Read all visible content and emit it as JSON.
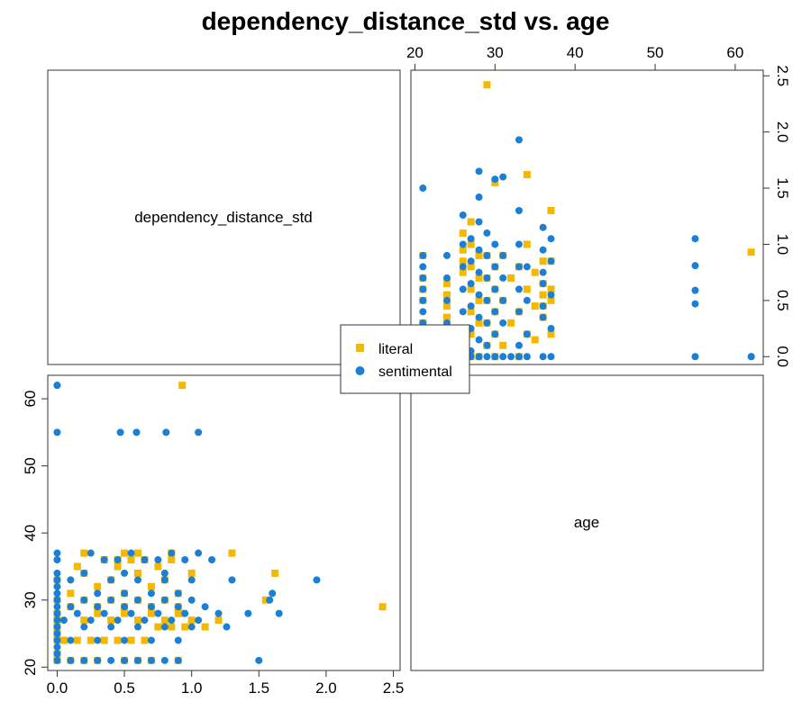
{
  "chart_data": {
    "type": "scatter",
    "title": "dependency_distance_std vs. age",
    "variables": [
      "dependency_distance_std",
      "age"
    ],
    "axes": {
      "dependency_distance_std": {
        "range": [
          -0.07,
          2.55
        ],
        "ticks": [
          "0.0",
          "0.5",
          "1.0",
          "1.5",
          "2.0",
          "2.5"
        ]
      },
      "age": {
        "range": [
          19.5,
          63.5
        ],
        "ticks": [
          "20",
          "30",
          "40",
          "50",
          "60"
        ]
      }
    },
    "colors": {
      "literal": "#F5B800",
      "sentimental": "#1B7FD4"
    },
    "legend": {
      "position": "center",
      "entries": [
        "literal",
        "sentimental"
      ]
    },
    "series": [
      {
        "name": "literal",
        "marker": "square",
        "x": [
          0.0,
          0.0,
          0.0,
          0.0,
          0.0,
          0.0,
          0.0,
          0.0,
          0.1,
          0.2,
          0.3,
          0.5,
          0.6,
          0.7,
          0.9,
          0.05,
          0.15,
          0.25,
          0.35,
          0.45,
          0.55,
          0.65,
          0.75,
          0.85,
          0.95,
          1.1,
          0.2,
          0.4,
          0.6,
          0.8,
          1.0,
          1.2,
          0.3,
          0.5,
          0.7,
          0.9,
          0.1,
          0.3,
          0.5,
          0.7,
          0.9,
          1.3,
          0.2,
          0.4,
          0.6,
          0.8,
          0.1,
          0.5,
          0.9,
          0.3,
          0.7,
          0.0,
          0.4,
          0.8,
          0.2,
          0.6,
          1.0,
          0.15,
          0.45,
          0.75,
          0.35,
          0.55,
          0.85,
          1.62,
          1.55,
          0.93,
          0.92,
          2.42,
          0.6,
          0.85,
          0.5,
          0.2,
          0.45,
          0.65
        ],
        "y": [
          21,
          22,
          24,
          25,
          26,
          27,
          28,
          30,
          21,
          21,
          21,
          21,
          21,
          21,
          21,
          24,
          24,
          24,
          24,
          24,
          24,
          24,
          26,
          26,
          26,
          26,
          27,
          27,
          27,
          27,
          27,
          27,
          28,
          28,
          28,
          28,
          29,
          29,
          29,
          29,
          29,
          37,
          30,
          30,
          30,
          30,
          31,
          31,
          31,
          32,
          32,
          33,
          33,
          33,
          34,
          34,
          34,
          35,
          35,
          35,
          36,
          36,
          36,
          34,
          30,
          62,
          28,
          29,
          37,
          37,
          37,
          37,
          36,
          36
        ]
      },
      {
        "name": "sentimental",
        "marker": "circle",
        "x": [
          0.0,
          0.0,
          0.0,
          0.0,
          0.0,
          0.0,
          0.0,
          0.0,
          0.0,
          0.0,
          0.0,
          0.0,
          0.0,
          0.0,
          0.0,
          0.0,
          0.0,
          0.1,
          0.2,
          0.3,
          0.4,
          0.5,
          0.6,
          0.7,
          0.8,
          0.9,
          0.1,
          0.3,
          0.5,
          0.7,
          0.9,
          0.2,
          0.4,
          0.6,
          0.8,
          1.0,
          0.05,
          0.25,
          0.45,
          0.65,
          0.85,
          1.05,
          0.15,
          0.35,
          0.55,
          0.75,
          0.95,
          1.2,
          0.1,
          0.3,
          0.5,
          0.7,
          0.9,
          1.1,
          0.2,
          0.4,
          0.6,
          0.8,
          1.0,
          0.3,
          0.5,
          0.7,
          0.9,
          0.1,
          0.4,
          0.6,
          0.8,
          1.0,
          0.2,
          0.5,
          0.8,
          1.15,
          0.35,
          0.65,
          0.95,
          0.25,
          0.55,
          0.85,
          0.45,
          0.75,
          1.05,
          1.3,
          1.65,
          1.5,
          1.93,
          1.6,
          1.58,
          1.42,
          1.26,
          0.47,
          0.59,
          0.81,
          1.05,
          0.0,
          0.0
        ],
        "y": [
          21,
          22,
          23,
          24,
          25,
          26,
          27,
          28,
          29,
          30,
          31,
          32,
          33,
          34,
          36,
          37,
          55,
          21,
          21,
          21,
          21,
          21,
          21,
          21,
          21,
          21,
          24,
          24,
          24,
          24,
          24,
          26,
          26,
          26,
          26,
          26,
          27,
          27,
          27,
          27,
          27,
          27,
          28,
          28,
          28,
          28,
          28,
          28,
          29,
          29,
          29,
          29,
          29,
          29,
          30,
          30,
          30,
          30,
          30,
          31,
          31,
          31,
          31,
          33,
          33,
          33,
          33,
          33,
          34,
          34,
          34,
          36,
          36,
          36,
          36,
          37,
          37,
          37,
          36,
          36,
          37,
          33,
          28,
          21,
          33,
          31,
          30,
          28,
          26,
          55,
          55,
          55,
          55,
          62,
          62
        ]
      }
    ]
  }
}
